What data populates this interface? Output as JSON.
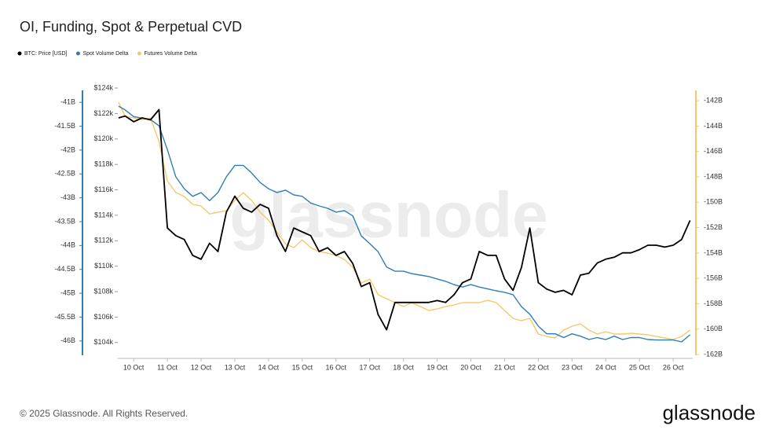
{
  "chart_data": {
    "type": "line",
    "title": "OI, Funding, Spot & Perpetual CVD",
    "watermark": "glassnode",
    "x": [
      9.55,
      9.75,
      10,
      10.25,
      10.5,
      10.75,
      11,
      11.25,
      11.5,
      11.75,
      12,
      12.25,
      12.5,
      12.75,
      13,
      13.25,
      13.5,
      13.75,
      14,
      14.25,
      14.5,
      14.75,
      15,
      15.25,
      15.5,
      15.75,
      16,
      16.25,
      16.5,
      16.75,
      17,
      17.25,
      17.5,
      17.75,
      18,
      18.25,
      18.5,
      18.75,
      19,
      19.25,
      19.5,
      19.75,
      20,
      20.25,
      20.5,
      20.75,
      21,
      21.25,
      21.5,
      21.75,
      22,
      22.25,
      22.5,
      22.75,
      23,
      23.25,
      23.5,
      23.75,
      24,
      24.25,
      24.5,
      24.75,
      25,
      25.25,
      25.5,
      25.75,
      26,
      26.25,
      26.5
    ],
    "xlim": [
      9.53,
      26.58
    ],
    "xticks": [
      {
        "value": 10,
        "label": "10 Oct"
      },
      {
        "value": 11,
        "label": "11 Oct"
      },
      {
        "value": 12,
        "label": "12 Oct"
      },
      {
        "value": 13,
        "label": "13 Oct"
      },
      {
        "value": 14,
        "label": "14 Oct"
      },
      {
        "value": 15,
        "label": "15 Oct"
      },
      {
        "value": 16,
        "label": "16 Oct"
      },
      {
        "value": 17,
        "label": "17 Oct"
      },
      {
        "value": 18,
        "label": "18 Oct"
      },
      {
        "value": 19,
        "label": "19 Oct"
      },
      {
        "value": 20,
        "label": "20 Oct"
      },
      {
        "value": 21,
        "label": "21 Oct"
      },
      {
        "value": 22,
        "label": "22 Oct"
      },
      {
        "value": 23,
        "label": "23 Oct"
      },
      {
        "value": 24,
        "label": "24 Oct"
      },
      {
        "value": 25,
        "label": "25 Oct"
      },
      {
        "value": 26,
        "label": "26 Oct"
      }
    ],
    "ylim": [
      103000,
      124000
    ],
    "yticks": [
      {
        "value": 104000,
        "label": "$104k"
      },
      {
        "value": 106000,
        "label": "$106k"
      },
      {
        "value": 108000,
        "label": "$108k"
      },
      {
        "value": 110000,
        "label": "$110k"
      },
      {
        "value": 112000,
        "label": "$112k"
      },
      {
        "value": 114000,
        "label": "$114k"
      },
      {
        "value": 116000,
        "label": "$116k"
      },
      {
        "value": 118000,
        "label": "$118k"
      },
      {
        "value": 120000,
        "label": "$120k"
      },
      {
        "value": 122000,
        "label": "$122k"
      },
      {
        "value": 124000,
        "label": "$124k"
      }
    ],
    "y2lim": [
      -162.06,
      -141.0
    ],
    "y2ticks": [
      {
        "value": -142,
        "label": "-142B"
      },
      {
        "value": -144,
        "label": "-144B"
      },
      {
        "value": -146,
        "label": "-146B"
      },
      {
        "value": -148,
        "label": "-148B"
      },
      {
        "value": -150,
        "label": "-150B"
      },
      {
        "value": -152,
        "label": "-152B"
      },
      {
        "value": -154,
        "label": "-154B"
      },
      {
        "value": -156,
        "label": "-156B"
      },
      {
        "value": -158,
        "label": "-158B"
      },
      {
        "value": -160,
        "label": "-160B"
      },
      {
        "value": -162,
        "label": "-162B"
      }
    ],
    "y2color": "#f5c86e",
    "y3lim": [
      -46.3,
      -40.7
    ],
    "y3ticks": [
      {
        "value": -41,
        "label": "-41B"
      },
      {
        "value": -41.5,
        "label": "-41.5B"
      },
      {
        "value": -42,
        "label": "-42B"
      },
      {
        "value": -42.5,
        "label": "-42.5B"
      },
      {
        "value": -43,
        "label": "-43B"
      },
      {
        "value": -43.5,
        "label": "-43.5B"
      },
      {
        "value": -44,
        "label": "-44B"
      },
      {
        "value": -44.5,
        "label": "-44.5B"
      },
      {
        "value": -45,
        "label": "-45B"
      },
      {
        "value": -45.5,
        "label": "-45.5B"
      },
      {
        "value": -46,
        "label": "-46B"
      }
    ],
    "y3color": "#2f7db5",
    "series": [
      {
        "name": "BTC: Price [USD]",
        "color": "#000000",
        "axis": "y",
        "values": [
          121650,
          121800,
          121350,
          121650,
          121500,
          122300,
          113000,
          112400,
          112100,
          110850,
          110550,
          111800,
          111150,
          114250,
          115500,
          114550,
          114250,
          114850,
          114550,
          112400,
          111150,
          113000,
          112700,
          112400,
          111150,
          111450,
          110850,
          111150,
          110200,
          108400,
          108700,
          106200,
          105000,
          107150,
          107150,
          107150,
          107150,
          107150,
          107300,
          107150,
          107750,
          108700,
          109000,
          111150,
          110850,
          110850,
          109000,
          108100,
          109900,
          113000,
          108700,
          108200,
          107950,
          108100,
          107750,
          109300,
          109450,
          110250,
          110550,
          110700,
          111050,
          111050,
          111300,
          111650,
          111650,
          111500,
          111650,
          112100,
          113600
        ]
      },
      {
        "name": "Spot Volume Delta",
        "color": "#2f7db5",
        "axis": "y3",
        "values": [
          -41.08,
          -41.16,
          -41.3,
          -41.33,
          -41.36,
          -41.49,
          -41.99,
          -42.56,
          -42.81,
          -42.97,
          -42.89,
          -43.06,
          -42.89,
          -42.56,
          -42.32,
          -42.32,
          -42.48,
          -42.68,
          -42.81,
          -42.89,
          -42.84,
          -42.94,
          -42.97,
          -43.11,
          -43.17,
          -43.22,
          -43.3,
          -43.27,
          -43.38,
          -43.8,
          -43.96,
          -44.13,
          -44.45,
          -44.54,
          -44.54,
          -44.59,
          -44.62,
          -44.65,
          -44.7,
          -44.75,
          -44.82,
          -44.87,
          -44.82,
          -44.87,
          -44.91,
          -44.95,
          -44.98,
          -45.03,
          -45.28,
          -45.44,
          -45.69,
          -45.85,
          -45.85,
          -45.93,
          -45.85,
          -45.9,
          -45.97,
          -45.93,
          -45.97,
          -45.9,
          -45.97,
          -45.93,
          -45.93,
          -45.97,
          -45.98,
          -45.98,
          -45.98,
          -46.02,
          -45.87
        ]
      },
      {
        "name": "Futures Volume Delta",
        "color": "#f5c86e",
        "axis": "y2",
        "values": [
          -142.12,
          -143.24,
          -143.36,
          -143.49,
          -143.36,
          -145.22,
          -148.32,
          -149.24,
          -149.55,
          -150.17,
          -150.3,
          -150.92,
          -150.79,
          -150.67,
          -149.86,
          -149.24,
          -149.86,
          -150.79,
          -151.41,
          -152.34,
          -153.27,
          -153.58,
          -152.96,
          -153.58,
          -153.89,
          -154.01,
          -154.2,
          -154.51,
          -155.13,
          -156.37,
          -156.06,
          -157.29,
          -157.6,
          -157.91,
          -158.22,
          -157.91,
          -158.22,
          -158.53,
          -158.41,
          -158.22,
          -158.1,
          -157.91,
          -157.91,
          -157.91,
          -157.73,
          -157.91,
          -158.53,
          -159.15,
          -159.34,
          -159.15,
          -160.39,
          -160.58,
          -160.7,
          -160.08,
          -159.77,
          -159.59,
          -160.08,
          -160.39,
          -160.2,
          -160.39,
          -160.39,
          -160.33,
          -160.39,
          -160.45,
          -160.58,
          -160.7,
          -160.82,
          -160.58,
          -160.08
        ]
      }
    ]
  },
  "footer": {
    "copyright": "© 2025 Glassnode. All Rights Reserved.",
    "logo": "glassnode"
  }
}
